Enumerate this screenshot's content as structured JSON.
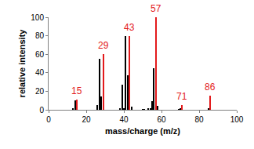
{
  "chart_data": {
    "type": "bar",
    "x": [
      13,
      14,
      15,
      26,
      27,
      28,
      29,
      38,
      39,
      40,
      41,
      42,
      43,
      44,
      50,
      51,
      53,
      54,
      55,
      56,
      57,
      58,
      69,
      70,
      71,
      85,
      86
    ],
    "values": [
      2,
      10,
      11,
      5,
      55,
      14,
      60,
      2,
      27,
      2,
      80,
      37,
      80,
      3,
      1,
      1,
      2,
      2,
      9,
      45,
      100,
      4,
      1,
      2,
      5,
      2,
      15
    ],
    "colors": [
      "#000000",
      "#000000",
      "#e31a1c",
      "#000000",
      "#000000",
      "#000000",
      "#e31a1c",
      "#000000",
      "#000000",
      "#000000",
      "#000000",
      "#000000",
      "#e31a1c",
      "#000000",
      "#000000",
      "#000000",
      "#000000",
      "#000000",
      "#000000",
      "#000000",
      "#e31a1c",
      "#000000",
      "#000000",
      "#000000",
      "#e31a1c",
      "#000000",
      "#e31a1c"
    ],
    "x_label": "mass/charge (m/z)",
    "y_label": "relative intensity",
    "xlim": [
      0,
      100
    ],
    "xticks": [
      0,
      20,
      40,
      60,
      80,
      100
    ],
    "ylim": [
      0,
      100
    ],
    "yticks": [
      0,
      20,
      40,
      60,
      80,
      100
    ],
    "grid": false,
    "annotations": [
      {
        "x": 15,
        "text": "15",
        "color": "#e31a1c"
      },
      {
        "x": 29,
        "text": "29",
        "color": "#e31a1c"
      },
      {
        "x": 43,
        "text": "43",
        "color": "#e31a1c"
      },
      {
        "x": 57,
        "text": "57",
        "color": "#e31a1c"
      },
      {
        "x": 71,
        "text": "71",
        "color": "#e31a1c"
      },
      {
        "x": 86,
        "text": "86",
        "color": "#e31a1c"
      }
    ]
  }
}
